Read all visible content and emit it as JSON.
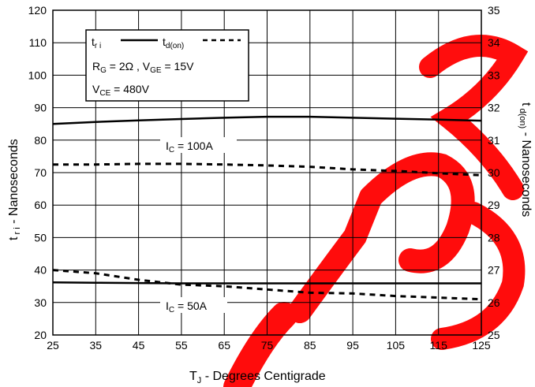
{
  "chart_data": {
    "type": "line",
    "title": "",
    "xlabel": "T_J - Degrees Centigrade",
    "ylabel_left": "t_ri - Nanoseconds",
    "ylabel_right": "t_d(on) - Nanoseconds",
    "xlim": [
      25,
      125
    ],
    "ylim_left": [
      20,
      120
    ],
    "ylim_right": [
      25,
      35
    ],
    "x_ticks": [
      25,
      35,
      45,
      55,
      65,
      75,
      85,
      95,
      105,
      115,
      125
    ],
    "y_ticks_left": [
      20,
      30,
      40,
      50,
      60,
      70,
      80,
      90,
      100,
      110,
      120
    ],
    "y_ticks_right": [
      25,
      26,
      27,
      28,
      29,
      30,
      31,
      32,
      33,
      34,
      35
    ],
    "grid": true,
    "legend": {
      "placement": "top-left",
      "entries": [
        {
          "label_main": "t",
          "label_sub": "r i",
          "style": "solid"
        },
        {
          "label_main": "t",
          "label_sub": "d(on)",
          "style": "dashed"
        }
      ],
      "conditions_line1": {
        "rg_main": "R",
        "rg_sub": "G",
        "rg_value": " = 2Ω ,  V",
        "vge_sub": "GE",
        "vge_value": " = 15V"
      },
      "conditions_line2": {
        "vce_main": "V",
        "vce_sub": "CE",
        "vce_value": " = 480V"
      }
    },
    "annotations": [
      {
        "main": "I",
        "sub": "C",
        "value": " = 100A"
      },
      {
        "main": "I",
        "sub": "C",
        "value": " = 50A"
      }
    ],
    "series": [
      {
        "name": "t_ri, I_C = 100A",
        "axis": "left",
        "style": "solid",
        "x": [
          25,
          35,
          45,
          55,
          65,
          75,
          85,
          95,
          105,
          115,
          125
        ],
        "y": [
          85,
          85.6,
          86.1,
          86.5,
          86.9,
          87.2,
          87.2,
          86.9,
          86.6,
          86.3,
          86
        ]
      },
      {
        "name": "t_d(on), I_C = 100A",
        "axis": "right",
        "style": "dashed",
        "x": [
          25,
          35,
          45,
          55,
          65,
          75,
          85,
          95,
          105,
          115,
          125
        ],
        "y": [
          30.25,
          30.25,
          30.27,
          30.27,
          30.25,
          30.22,
          30.18,
          30.1,
          30.05,
          29.98,
          29.92
        ]
      },
      {
        "name": "t_ri, I_C = 50A",
        "axis": "left",
        "style": "solid",
        "x": [
          25,
          35,
          45,
          55,
          65,
          75,
          85,
          95,
          105,
          115,
          125
        ],
        "y": [
          36.2,
          36.1,
          36,
          35.9,
          35.9,
          35.9,
          35.9,
          35.9,
          35.9,
          35.9,
          35.9
        ]
      },
      {
        "name": "t_d(on), I_C = 50A",
        "axis": "right",
        "style": "dashed",
        "x": [
          25,
          35,
          45,
          55,
          65,
          75,
          85,
          95,
          105,
          115,
          125
        ],
        "y": [
          27,
          26.9,
          26.7,
          26.55,
          26.5,
          26.4,
          26.3,
          26.28,
          26.2,
          26.15,
          26.1
        ]
      }
    ]
  },
  "colors": {
    "grid": "#000000",
    "series": "#000000",
    "watermark": "#ff0000"
  }
}
